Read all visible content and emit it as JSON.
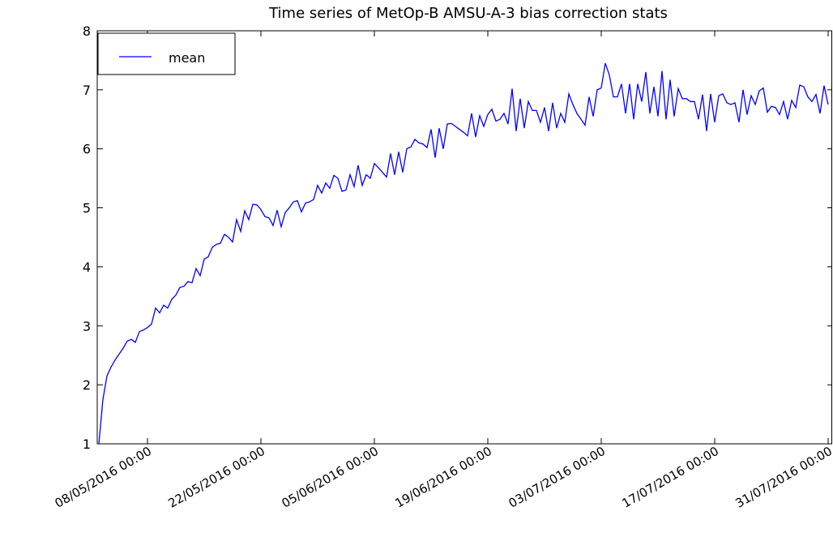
{
  "chart_data": {
    "type": "line",
    "title": "Time series of MetOp-B AMSU-A-3 bias correction stats",
    "x": [
      "02/05/2016 00:00",
      "02/05/2016 12:00",
      "03/05/2016 00:00",
      "03/05/2016 12:00",
      "04/05/2016 00:00",
      "04/05/2016 12:00",
      "05/05/2016 00:00",
      "05/05/2016 12:00",
      "06/05/2016 00:00",
      "06/05/2016 12:00",
      "07/05/2016 00:00",
      "07/05/2016 12:00",
      "08/05/2016 00:00",
      "08/05/2016 12:00",
      "09/05/2016 00:00",
      "09/05/2016 12:00",
      "10/05/2016 00:00",
      "10/05/2016 12:00",
      "11/05/2016 00:00",
      "11/05/2016 12:00",
      "12/05/2016 00:00",
      "12/05/2016 12:00",
      "13/05/2016 00:00",
      "13/05/2016 12:00",
      "14/05/2016 00:00",
      "14/05/2016 12:00",
      "15/05/2016 00:00",
      "15/05/2016 12:00",
      "16/05/2016 00:00",
      "16/05/2016 12:00",
      "17/05/2016 00:00",
      "17/05/2016 12:00",
      "18/05/2016 00:00",
      "18/05/2016 12:00",
      "19/05/2016 00:00",
      "19/05/2016 12:00",
      "20/05/2016 00:00",
      "20/05/2016 12:00",
      "21/05/2016 00:00",
      "21/05/2016 12:00",
      "22/05/2016 00:00",
      "22/05/2016 12:00",
      "23/05/2016 00:00",
      "23/05/2016 12:00",
      "24/05/2016 00:00",
      "24/05/2016 12:00",
      "25/05/2016 00:00",
      "25/05/2016 12:00",
      "26/05/2016 00:00",
      "26/05/2016 12:00",
      "27/05/2016 00:00",
      "27/05/2016 12:00",
      "28/05/2016 00:00",
      "28/05/2016 12:00",
      "29/05/2016 00:00",
      "29/05/2016 12:00",
      "30/05/2016 00:00",
      "30/05/2016 12:00",
      "31/05/2016 00:00",
      "31/05/2016 12:00",
      "01/06/2016 00:00",
      "01/06/2016 12:00",
      "02/06/2016 00:00",
      "02/06/2016 12:00",
      "03/06/2016 00:00",
      "03/06/2016 12:00",
      "04/06/2016 00:00",
      "04/06/2016 12:00",
      "05/06/2016 00:00",
      "05/06/2016 12:00",
      "06/06/2016 00:00",
      "06/06/2016 12:00",
      "07/06/2016 00:00",
      "07/06/2016 12:00",
      "08/06/2016 00:00",
      "08/06/2016 12:00",
      "09/06/2016 00:00",
      "09/06/2016 12:00",
      "10/06/2016 00:00",
      "10/06/2016 12:00",
      "11/06/2016 00:00",
      "11/06/2016 12:00",
      "12/06/2016 00:00",
      "12/06/2016 12:00",
      "13/06/2016 00:00",
      "13/06/2016 12:00",
      "14/06/2016 00:00",
      "14/06/2016 12:00",
      "15/06/2016 00:00",
      "15/06/2016 12:00",
      "16/06/2016 00:00",
      "16/06/2016 12:00",
      "17/06/2016 00:00",
      "17/06/2016 12:00",
      "18/06/2016 00:00",
      "18/06/2016 12:00",
      "19/06/2016 00:00",
      "19/06/2016 12:00",
      "20/06/2016 00:00",
      "20/06/2016 12:00",
      "21/06/2016 00:00",
      "21/06/2016 12:00",
      "22/06/2016 00:00",
      "22/06/2016 12:00",
      "23/06/2016 00:00",
      "23/06/2016 12:00",
      "24/06/2016 00:00",
      "24/06/2016 12:00",
      "25/06/2016 00:00",
      "25/06/2016 12:00",
      "26/06/2016 00:00",
      "26/06/2016 12:00",
      "27/06/2016 00:00",
      "27/06/2016 12:00",
      "28/06/2016 00:00",
      "28/06/2016 12:00",
      "29/06/2016 00:00",
      "29/06/2016 12:00",
      "30/06/2016 00:00",
      "30/06/2016 12:00",
      "01/07/2016 00:00",
      "01/07/2016 12:00",
      "02/07/2016 00:00",
      "02/07/2016 12:00",
      "03/07/2016 00:00",
      "03/07/2016 12:00",
      "04/07/2016 00:00",
      "04/07/2016 12:00",
      "05/07/2016 00:00",
      "05/07/2016 12:00",
      "06/07/2016 00:00",
      "06/07/2016 12:00",
      "07/07/2016 00:00",
      "07/07/2016 12:00",
      "08/07/2016 00:00",
      "08/07/2016 12:00",
      "09/07/2016 00:00",
      "09/07/2016 12:00",
      "10/07/2016 00:00",
      "10/07/2016 12:00",
      "11/07/2016 00:00",
      "11/07/2016 12:00",
      "12/07/2016 00:00",
      "12/07/2016 12:00",
      "13/07/2016 00:00",
      "13/07/2016 12:00",
      "14/07/2016 00:00",
      "14/07/2016 12:00",
      "15/07/2016 00:00",
      "15/07/2016 12:00",
      "16/07/2016 00:00",
      "16/07/2016 12:00",
      "17/07/2016 00:00",
      "17/07/2016 12:00",
      "18/07/2016 00:00",
      "18/07/2016 12:00",
      "19/07/2016 00:00",
      "19/07/2016 12:00",
      "20/07/2016 00:00",
      "20/07/2016 12:00",
      "21/07/2016 00:00",
      "21/07/2016 12:00",
      "22/07/2016 00:00",
      "22/07/2016 12:00",
      "23/07/2016 00:00",
      "23/07/2016 12:00",
      "24/07/2016 00:00",
      "24/07/2016 12:00",
      "25/07/2016 00:00",
      "25/07/2016 12:00",
      "26/07/2016 00:00",
      "26/07/2016 12:00",
      "27/07/2016 00:00",
      "27/07/2016 12:00",
      "28/07/2016 00:00",
      "28/07/2016 12:00",
      "29/07/2016 00:00",
      "29/07/2016 12:00",
      "30/07/2016 00:00",
      "30/07/2016 12:00",
      "31/07/2016 00:00"
    ],
    "series": [
      {
        "name": "mean",
        "color": "#0000ff",
        "values": [
          1.0,
          1.75,
          2.15,
          2.3,
          2.42,
          2.52,
          2.62,
          2.74,
          2.77,
          2.72,
          2.9,
          2.93,
          2.97,
          3.03,
          3.3,
          3.22,
          3.35,
          3.3,
          3.45,
          3.52,
          3.65,
          3.67,
          3.75,
          3.73,
          3.97,
          3.85,
          4.13,
          4.17,
          4.33,
          4.38,
          4.4,
          4.55,
          4.5,
          4.42,
          4.8,
          4.6,
          4.95,
          4.8,
          5.06,
          5.05,
          4.97,
          4.85,
          4.83,
          4.7,
          4.96,
          4.68,
          4.92,
          5.0,
          5.1,
          5.12,
          4.93,
          5.08,
          5.1,
          5.14,
          5.38,
          5.25,
          5.42,
          5.33,
          5.55,
          5.5,
          5.28,
          5.3,
          5.56,
          5.36,
          5.72,
          5.38,
          5.56,
          5.5,
          5.75,
          5.68,
          5.6,
          5.52,
          5.92,
          5.56,
          5.95,
          5.6,
          6.0,
          6.03,
          6.16,
          6.1,
          6.08,
          6.02,
          6.33,
          5.85,
          6.35,
          6.0,
          6.42,
          6.43,
          6.38,
          6.33,
          6.28,
          6.22,
          6.6,
          6.2,
          6.56,
          6.38,
          6.58,
          6.67,
          6.47,
          6.5,
          6.6,
          6.42,
          7.02,
          6.3,
          6.85,
          6.35,
          6.8,
          6.65,
          6.65,
          6.45,
          6.7,
          6.3,
          6.78,
          6.35,
          6.6,
          6.45,
          6.93,
          6.75,
          6.6,
          6.5,
          6.4,
          6.88,
          6.55,
          7.0,
          7.03,
          7.45,
          7.25,
          6.88,
          6.88,
          7.1,
          6.6,
          7.1,
          6.5,
          7.1,
          6.8,
          7.3,
          6.6,
          7.05,
          6.55,
          7.32,
          6.5,
          7.17,
          6.55,
          7.02,
          6.85,
          6.85,
          6.8,
          6.8,
          6.5,
          6.92,
          6.3,
          6.93,
          6.45,
          6.9,
          6.93,
          6.78,
          6.75,
          6.78,
          6.45,
          7.0,
          6.58,
          6.9,
          6.75,
          6.98,
          7.03,
          6.62,
          6.72,
          6.7,
          6.58,
          6.8,
          6.5,
          6.82,
          6.7,
          7.08,
          7.05,
          6.88,
          6.8,
          6.92,
          6.6,
          7.07,
          6.75
        ]
      }
    ],
    "xlim": [
      "02/05/2016 00:00",
      "31/07/2016 12:00"
    ],
    "xticks": [
      "08/05/2016 00:00",
      "22/05/2016 00:00",
      "05/06/2016 00:00",
      "19/06/2016 00:00",
      "03/07/2016 00:00",
      "17/07/2016 00:00",
      "31/07/2016 00:00"
    ],
    "ylim": [
      1,
      8
    ],
    "yticks": [
      1,
      2,
      3,
      4,
      5,
      6,
      7,
      8
    ],
    "legend": "upper left"
  }
}
